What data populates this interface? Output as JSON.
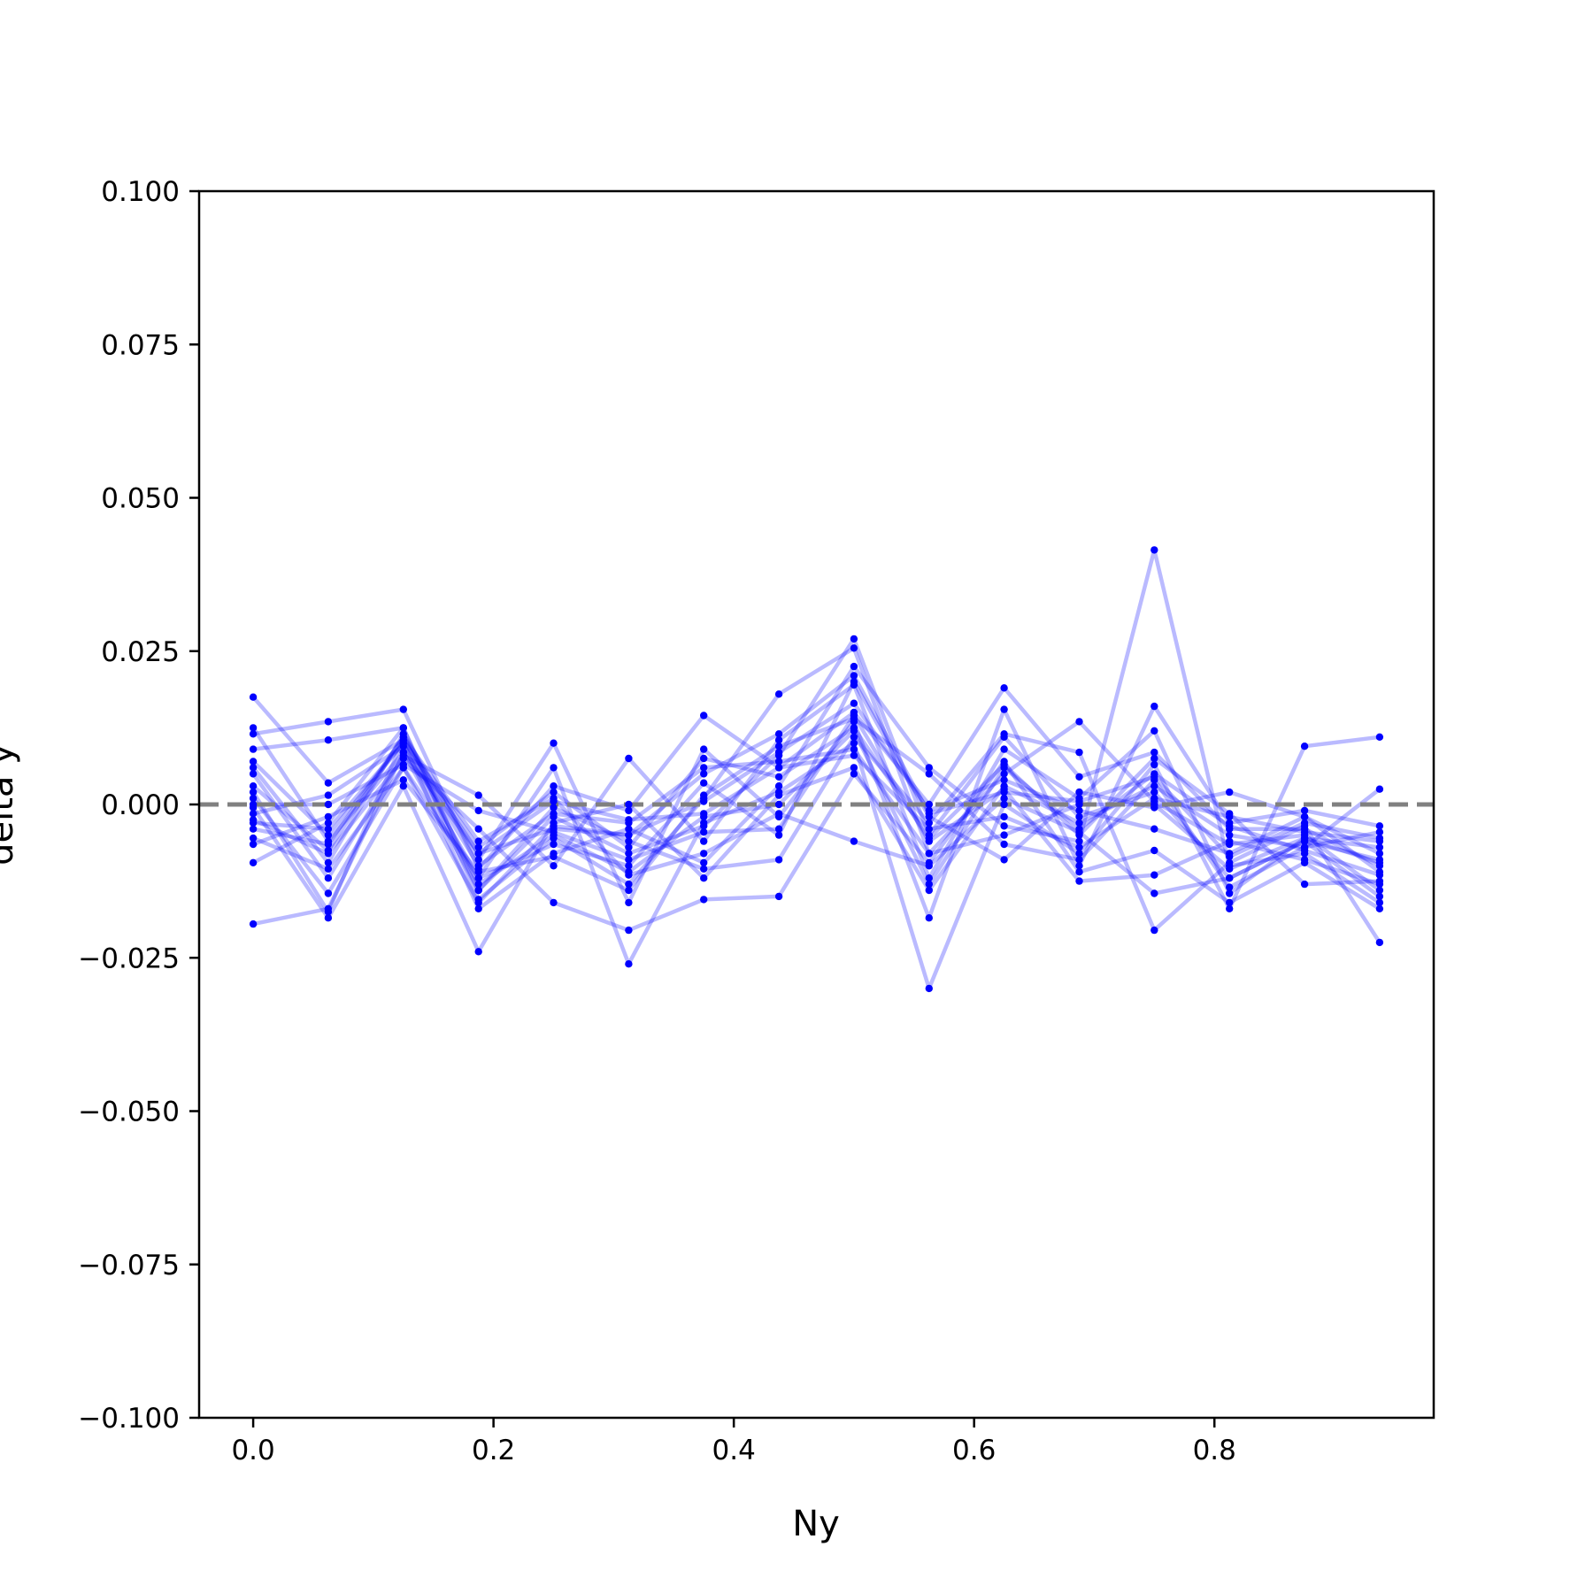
{
  "chart_data": {
    "type": "line",
    "xlabel": "Ny",
    "ylabel": "delta y",
    "xlim": [
      -0.045,
      0.9825
    ],
    "ylim": [
      -0.1,
      0.1
    ],
    "x_ticks": [
      0.0,
      0.2,
      0.4,
      0.6,
      0.8
    ],
    "x_tick_labels": [
      "0.0",
      "0.2",
      "0.4",
      "0.6",
      "0.8"
    ],
    "y_ticks": [
      0.1,
      0.075,
      0.05,
      0.025,
      0.0,
      -0.025,
      -0.05,
      -0.075,
      -0.1
    ],
    "y_tick_labels": [
      "0.100",
      "0.075",
      "0.050",
      "0.025",
      "0.000",
      "−0.025",
      "−0.050",
      "−0.075",
      "−0.100"
    ],
    "reference_line": {
      "y": 0.0,
      "style": "dashed",
      "color": "#808080"
    },
    "grid": false,
    "legend": "none",
    "line_color": "#0000ff",
    "x": [
      0.0,
      0.0625,
      0.125,
      0.1875,
      0.25,
      0.3125,
      0.375,
      0.4375,
      0.5,
      0.5625,
      0.625,
      0.6875,
      0.75,
      0.8125,
      0.875,
      0.9375
    ],
    "series": [
      {
        "values": [
          0.0175,
          0.0035,
          0.0105,
          -0.008,
          -0.004,
          -0.005,
          0.005,
          0.0115,
          0.021,
          -0.0015,
          0.002,
          0.0005,
          0.0045,
          -0.0085,
          -0.003,
          -0.0055
        ]
      },
      {
        "values": [
          0.0125,
          -0.006,
          0.0085,
          -0.014,
          -0.002,
          -0.008,
          -0.0035,
          0.008,
          0.027,
          -0.005,
          0.011,
          -0.002,
          0.002,
          -0.012,
          -0.006,
          -0.009
        ]
      },
      {
        "values": [
          0.0115,
          0.0135,
          0.0155,
          -0.0105,
          0.003,
          -0.001,
          0.0145,
          0.006,
          0.015,
          0.0,
          0.019,
          0.0045,
          0.0085,
          -0.004,
          -0.004,
          -0.01
        ]
      },
      {
        "values": [
          0.009,
          0.0105,
          0.0125,
          -0.0155,
          -0.0055,
          -0.013,
          0.001,
          0.018,
          0.0255,
          -0.008,
          0.005,
          0.0135,
          0.0005,
          -0.0065,
          -0.005,
          -0.014
        ]
      },
      {
        "values": [
          0.007,
          -0.005,
          0.01,
          -0.017,
          -0.008,
          -0.004,
          -0.0095,
          0.003,
          0.0225,
          0.006,
          -0.0035,
          -0.006,
          0.0415,
          -0.01,
          -0.008,
          -0.016
        ]
      },
      {
        "values": [
          0.006,
          -0.0095,
          0.0115,
          -0.009,
          0.01,
          -0.016,
          0.009,
          -0.002,
          0.0135,
          -0.0185,
          0.0155,
          -0.01,
          0.016,
          -0.003,
          -0.001,
          -0.0035
        ]
      },
      {
        "values": [
          0.005,
          -0.012,
          0.008,
          0.0015,
          -0.01,
          0.0075,
          -0.006,
          0.0105,
          0.0195,
          -0.012,
          0.009,
          0.001,
          0.012,
          -0.0145,
          -0.0055,
          -0.007
        ]
      },
      {
        "values": [
          0.002,
          -0.0175,
          0.0105,
          -0.007,
          0.002,
          -0.007,
          0.0075,
          0.0045,
          0.0125,
          -0.0055,
          0.0065,
          -0.005,
          0.0075,
          -0.0015,
          -0.013,
          -0.0125
        ]
      },
      {
        "values": [
          0.001,
          -0.0145,
          0.006,
          -0.012,
          0.006,
          -0.026,
          -0.003,
          0.002,
          0.01,
          -0.03,
          0.0,
          -0.008,
          0.0065,
          -0.017,
          0.0095,
          0.011
        ]
      },
      {
        "values": [
          -0.0005,
          -0.0185,
          0.003,
          -0.024,
          -0.003,
          0.0,
          -0.012,
          0.0015,
          0.006,
          -0.014,
          0.003,
          -0.003,
          0.003,
          -0.005,
          -0.007,
          -0.0045
        ]
      },
      {
        "values": [
          -0.0015,
          0.0015,
          0.0095,
          -0.012,
          -0.0065,
          -0.01,
          0.0035,
          -0.005,
          0.02,
          -0.002,
          -0.009,
          0.002,
          -0.0005,
          0.002,
          -0.002,
          -0.008
        ]
      },
      {
        "values": [
          -0.0025,
          -0.008,
          0.0075,
          -0.004,
          -0.016,
          -0.0205,
          -0.0155,
          -0.015,
          0.005,
          -0.0095,
          0.007,
          -0.011,
          -0.0075,
          -0.016,
          -0.0095,
          -0.017
        ]
      },
      {
        "values": [
          -0.004,
          -0.0065,
          0.011,
          -0.006,
          0.001,
          -0.0115,
          -0.008,
          -0.0015,
          -0.006,
          -0.01,
          0.001,
          -0.0045,
          -0.0145,
          -0.012,
          -0.006,
          -0.015
        ]
      },
      {
        "values": [
          -0.0055,
          -0.0105,
          0.006,
          -0.016,
          -0.0035,
          -0.005,
          0.0005,
          0.0085,
          0.0165,
          -0.001,
          0.004,
          -0.001,
          -0.004,
          -0.008,
          -0.002,
          -0.011
        ]
      },
      {
        "values": [
          -0.0065,
          -0.002,
          0.004,
          -0.011,
          -0.0085,
          -0.014,
          0.0015,
          0.0095,
          0.014,
          0.005,
          -0.0065,
          -0.009,
          0.004,
          -0.0135,
          -0.007,
          0.0025
        ]
      },
      {
        "values": [
          -0.0095,
          -0.003,
          0.0125,
          -0.014,
          -0.0005,
          -0.006,
          -0.0105,
          -0.009,
          0.011,
          -0.003,
          0.0115,
          0.0085,
          -0.0205,
          -0.0095,
          -0.0035,
          -0.0225
        ]
      },
      {
        "values": [
          -0.0195,
          -0.017,
          0.0085,
          -0.008,
          0.0005,
          -0.0025,
          -0.0015,
          0.006,
          0.008,
          -0.004,
          -0.002,
          -0.007,
          0.001,
          -0.002,
          -0.0045,
          -0.006
        ]
      },
      {
        "values": [
          0.0,
          0.0,
          0.0065,
          -0.001,
          -0.0045,
          -0.009,
          -0.0045,
          -0.004,
          0.0145,
          -0.006,
          0.0025,
          -0.0125,
          -0.0115,
          -0.006,
          -0.009,
          -0.013
        ]
      },
      {
        "values": [
          -0.003,
          -0.004,
          0.01,
          -0.01,
          -0.0015,
          -0.003,
          0.006,
          0.007,
          0.009,
          -0.008,
          -0.005,
          0.0,
          0.0,
          -0.0105,
          -0.0055,
          -0.0095
        ]
      },
      {
        "values": [
          0.003,
          -0.0075,
          0.011,
          -0.013,
          -0.005,
          -0.011,
          -0.002,
          0.0,
          0.012,
          -0.013,
          0.006,
          -0.004,
          0.005,
          -0.0035,
          -0.0075,
          -0.0115
        ]
      }
    ]
  }
}
